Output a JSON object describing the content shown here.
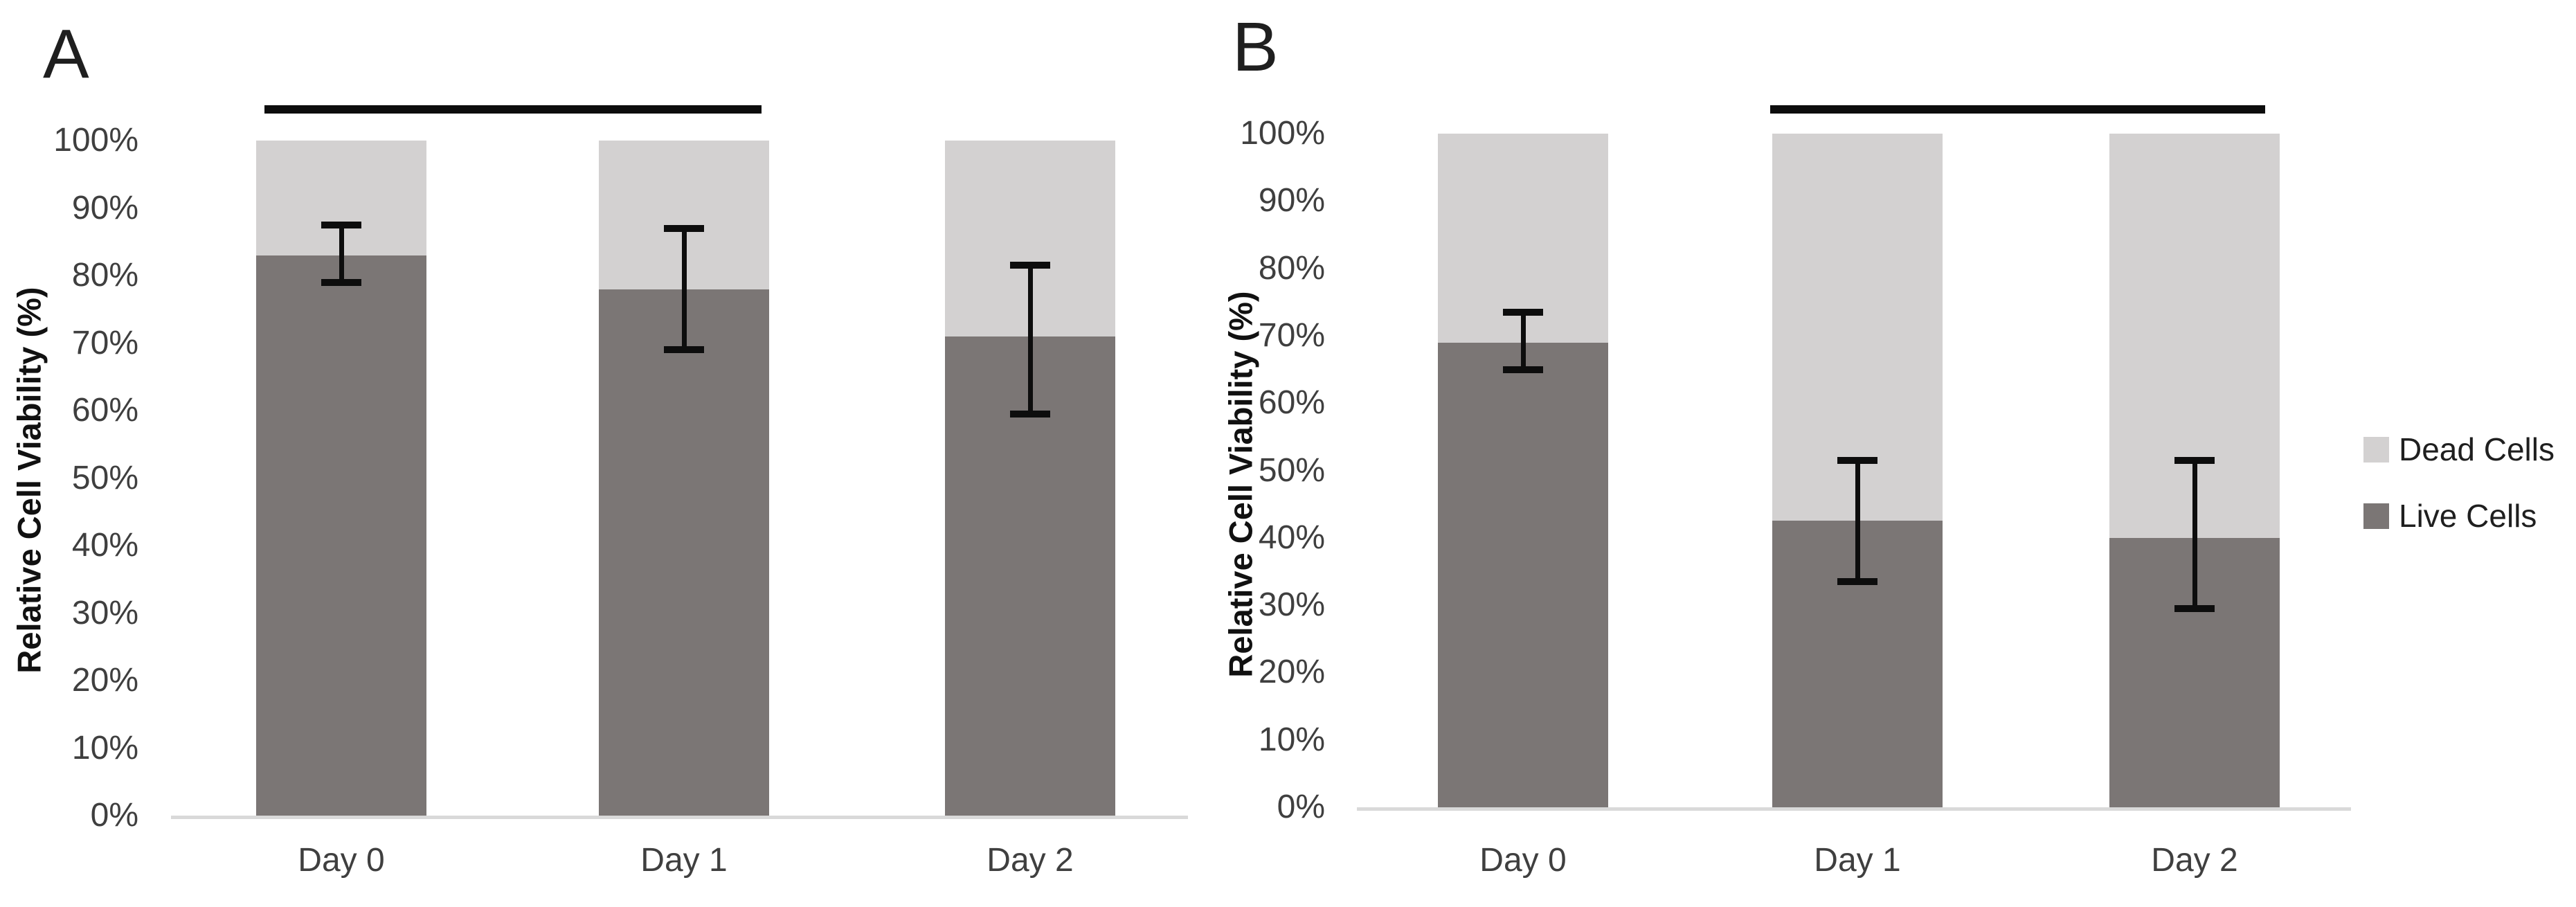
{
  "chart_data": [
    {
      "type": "bar",
      "stacked": true,
      "panel_label": "A",
      "title": "",
      "xlabel": "",
      "ylabel": "Relative Cell Viability (%)",
      "categories": [
        "Day 0",
        "Day 1",
        "Day 2"
      ],
      "series": [
        {
          "name": "Live Cells",
          "color": "#7b7675",
          "values": [
            83,
            78,
            71
          ]
        },
        {
          "name": "Dead Cells",
          "color": "#d3d1d1",
          "values": [
            17,
            22,
            29
          ]
        }
      ],
      "error_bars": {
        "on_series": "Live Cells",
        "low": [
          79,
          69,
          59.5
        ],
        "high": [
          87.5,
          87,
          81.5
        ]
      },
      "significance_line": {
        "categories": [
          "Day 0",
          "Day 1"
        ]
      },
      "ylim": [
        0,
        100
      ],
      "ytick_step": 10,
      "yticks": [
        "0%",
        "10%",
        "20%",
        "30%",
        "40%",
        "50%",
        "60%",
        "70%",
        "80%",
        "90%",
        "100%"
      ],
      "grid": false,
      "legend_position": "right-of-figure"
    },
    {
      "type": "bar",
      "stacked": true,
      "panel_label": "B",
      "title": "",
      "xlabel": "",
      "ylabel": "Relative Cell Viability (%)",
      "categories": [
        "Day 0",
        "Day 1",
        "Day 2"
      ],
      "series": [
        {
          "name": "Live Cells",
          "color": "#7b7675",
          "values": [
            69,
            42.5,
            40
          ]
        },
        {
          "name": "Dead Cells",
          "color": "#d3d1d1",
          "values": [
            31,
            57.5,
            60
          ]
        }
      ],
      "error_bars": {
        "on_series": "Live Cells",
        "low": [
          65,
          33.5,
          29.5
        ],
        "high": [
          73.5,
          51.5,
          51.5
        ]
      },
      "significance_line": {
        "categories": [
          "Day 1",
          "Day 2"
        ]
      },
      "ylim": [
        0,
        100
      ],
      "ytick_step": 10,
      "yticks": [
        "0%",
        "10%",
        "20%",
        "30%",
        "40%",
        "50%",
        "60%",
        "70%",
        "80%",
        "90%",
        "100%"
      ],
      "grid": false,
      "legend_position": "right-of-figure"
    }
  ],
  "legend": {
    "items": [
      {
        "label": "Dead Cells",
        "color": "#d3d1d1"
      },
      {
        "label": "Live Cells",
        "color": "#7b7675"
      }
    ]
  },
  "colors": {
    "live_bar": "#7b7675",
    "dead_bar": "#d3d1d1",
    "axis_line": "#d9d9d9",
    "error_bar": "#0d0d0d",
    "significance_line": "#0d0d0d"
  }
}
